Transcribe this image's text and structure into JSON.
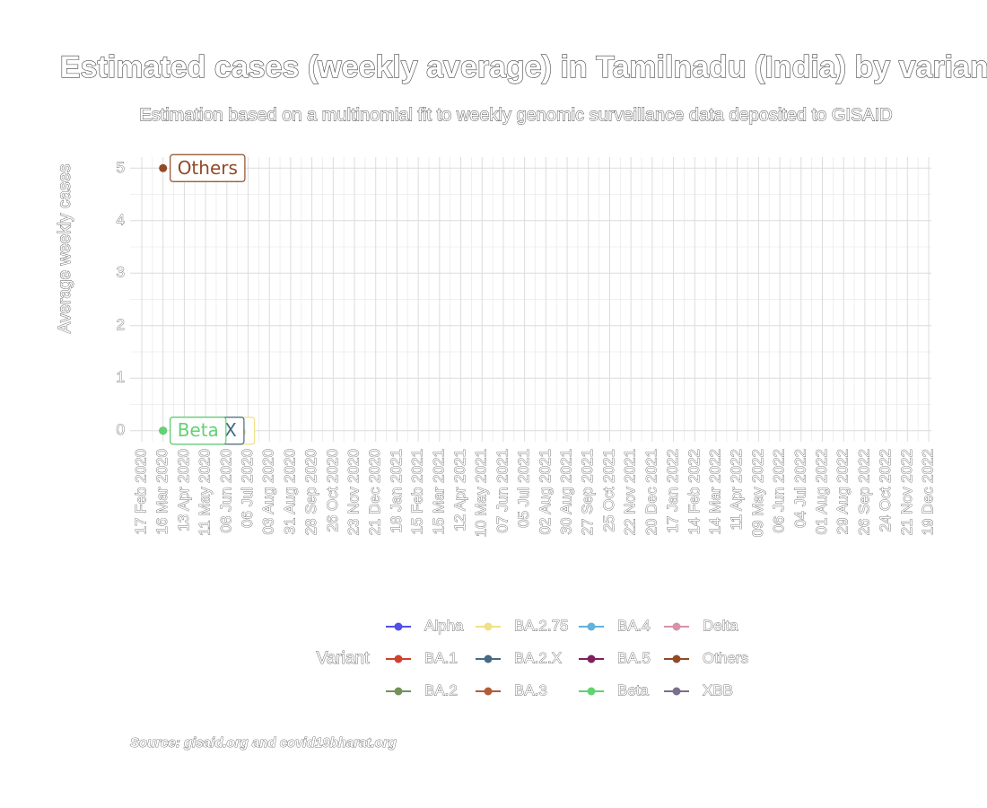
{
  "chart_data": {
    "type": "scatter",
    "title": "Estimated cases (weekly average) in Tamilnadu (India) by variant",
    "subtitle": "Estimation based on a multinomial fit to weekly genomic surveillance data deposited to GISAID",
    "ylabel": "Average weekly cases",
    "legend_title": "Variant",
    "caption": "Source: gisaid.org and covid19bharat.org",
    "categories": [
      "17 Feb 2020",
      "16 Mar 2020",
      "13 Apr 2020",
      "11 May 2020",
      "08 Jun 2020",
      "06 Jul 2020",
      "03 Aug 2020",
      "31 Aug 2020",
      "28 Sep 2020",
      "26 Oct 2020",
      "23 Nov 2020",
      "21 Dec 2020",
      "18 Jan 2021",
      "15 Feb 2021",
      "15 Mar 2021",
      "12 Apr 2021",
      "10 May 2021",
      "07 Jun 2021",
      "05 Jul 2021",
      "02 Aug 2021",
      "30 Aug 2021",
      "27 Sep 2021",
      "25 Oct 2021",
      "22 Nov 2021",
      "20 Dec 2021",
      "17 Jan 2022",
      "14 Feb 2022",
      "14 Mar 2022",
      "11 Apr 2022",
      "09 May 2022",
      "06 Jun 2022",
      "04 Jul 2022",
      "01 Aug 2022",
      "29 Aug 2022",
      "26 Sep 2022",
      "24 Oct 2022",
      "21 Nov 2022",
      "19 Dec 2022"
    ],
    "ylim": [
      -0.21,
      5.21
    ],
    "yticks": [
      0,
      1,
      2,
      3,
      4,
      5
    ],
    "grid": true,
    "series": [
      {
        "name": "Alpha",
        "color": "#5050e6",
        "values": [
          null,
          null,
          null,
          null,
          null,
          null,
          null,
          null,
          null,
          null,
          null,
          null,
          null,
          null,
          null,
          null,
          null,
          null,
          null,
          null,
          null,
          null,
          null,
          null,
          null,
          null,
          null,
          null,
          null,
          null,
          null,
          null,
          null,
          null,
          null,
          null,
          null,
          null
        ]
      },
      {
        "name": "BA.1",
        "color": "#d0402f",
        "values": [
          null,
          null,
          null,
          null,
          null,
          null,
          null,
          null,
          null,
          null,
          null,
          null,
          null,
          null,
          null,
          null,
          null,
          null,
          null,
          null,
          null,
          null,
          null,
          null,
          null,
          null,
          null,
          null,
          null,
          null,
          null,
          null,
          null,
          null,
          null,
          null,
          null,
          null
        ]
      },
      {
        "name": "BA.2",
        "color": "#72925a",
        "values": [
          null,
          null,
          null,
          null,
          null,
          null,
          null,
          null,
          null,
          null,
          null,
          null,
          null,
          null,
          null,
          null,
          null,
          null,
          null,
          null,
          null,
          null,
          null,
          null,
          null,
          null,
          null,
          null,
          null,
          null,
          null,
          null,
          null,
          null,
          null,
          null,
          null,
          null
        ]
      },
      {
        "name": "BA.2.75",
        "color": "#efe184",
        "values": [
          null,
          0,
          null,
          null,
          null,
          null,
          null,
          null,
          null,
          null,
          null,
          null,
          null,
          null,
          null,
          null,
          null,
          null,
          null,
          null,
          null,
          null,
          null,
          null,
          null,
          null,
          null,
          null,
          null,
          null,
          null,
          null,
          null,
          null,
          null,
          null,
          null,
          null
        ]
      },
      {
        "name": "BA.2.X",
        "color": "#456a82",
        "values": [
          null,
          0,
          null,
          null,
          null,
          null,
          null,
          null,
          null,
          null,
          null,
          null,
          null,
          null,
          null,
          null,
          null,
          null,
          null,
          null,
          null,
          null,
          null,
          null,
          null,
          null,
          null,
          null,
          null,
          null,
          null,
          null,
          null,
          null,
          null,
          null,
          null,
          null
        ]
      },
      {
        "name": "BA.3",
        "color": "#b35c38",
        "values": [
          null,
          null,
          null,
          null,
          null,
          null,
          null,
          null,
          null,
          null,
          null,
          null,
          null,
          null,
          null,
          null,
          null,
          null,
          null,
          null,
          null,
          null,
          null,
          null,
          null,
          null,
          null,
          null,
          null,
          null,
          null,
          null,
          null,
          null,
          null,
          null,
          null,
          null
        ]
      },
      {
        "name": "BA.4",
        "color": "#62b2da",
        "values": [
          null,
          null,
          null,
          null,
          null,
          null,
          null,
          null,
          null,
          null,
          null,
          null,
          null,
          null,
          null,
          null,
          null,
          null,
          null,
          null,
          null,
          null,
          null,
          null,
          null,
          null,
          null,
          null,
          null,
          null,
          null,
          null,
          null,
          null,
          null,
          null,
          null,
          null
        ]
      },
      {
        "name": "BA.5",
        "color": "#7e215c",
        "values": [
          null,
          null,
          null,
          null,
          null,
          null,
          null,
          null,
          null,
          null,
          null,
          null,
          null,
          null,
          null,
          null,
          null,
          null,
          null,
          null,
          null,
          null,
          null,
          null,
          null,
          null,
          null,
          null,
          null,
          null,
          null,
          null,
          null,
          null,
          null,
          null,
          null,
          null
        ]
      },
      {
        "name": "Beta",
        "color": "#62d272",
        "values": [
          null,
          0,
          null,
          null,
          null,
          null,
          null,
          null,
          null,
          null,
          null,
          null,
          null,
          null,
          null,
          null,
          null,
          null,
          null,
          null,
          null,
          null,
          null,
          null,
          null,
          null,
          null,
          null,
          null,
          null,
          null,
          null,
          null,
          null,
          null,
          null,
          null,
          null
        ]
      },
      {
        "name": "Delta",
        "color": "#d892aa",
        "values": [
          null,
          null,
          null,
          null,
          null,
          null,
          null,
          null,
          null,
          null,
          null,
          null,
          null,
          null,
          null,
          null,
          null,
          null,
          null,
          null,
          null,
          null,
          null,
          null,
          null,
          null,
          null,
          null,
          null,
          null,
          null,
          null,
          null,
          null,
          null,
          null,
          null,
          null
        ]
      },
      {
        "name": "Others",
        "color": "#914a26",
        "values": [
          null,
          5,
          null,
          null,
          null,
          null,
          null,
          null,
          null,
          null,
          null,
          null,
          null,
          null,
          null,
          null,
          null,
          null,
          null,
          null,
          null,
          null,
          null,
          null,
          null,
          null,
          null,
          null,
          null,
          null,
          null,
          null,
          null,
          null,
          null,
          null,
          null,
          null
        ]
      },
      {
        "name": "XBB",
        "color": "#7a6f8c",
        "values": [
          null,
          null,
          null,
          null,
          null,
          null,
          null,
          null,
          null,
          null,
          null,
          null,
          null,
          null,
          null,
          null,
          null,
          null,
          null,
          null,
          null,
          null,
          null,
          null,
          null,
          null,
          null,
          null,
          null,
          null,
          null,
          null,
          null,
          null,
          null,
          null,
          null,
          null
        ]
      }
    ]
  }
}
